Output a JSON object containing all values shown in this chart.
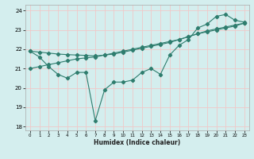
{
  "xlabel": "Humidex (Indice chaleur)",
  "x": [
    0,
    1,
    2,
    3,
    4,
    5,
    6,
    7,
    8,
    9,
    10,
    11,
    12,
    13,
    14,
    15,
    16,
    17,
    18,
    19,
    20,
    21,
    22,
    23
  ],
  "line1": [
    21.9,
    21.6,
    21.1,
    20.7,
    20.5,
    20.8,
    20.8,
    18.3,
    19.9,
    20.3,
    20.3,
    20.4,
    20.8,
    21.0,
    20.7,
    21.7,
    22.2,
    22.5,
    23.1,
    23.3,
    23.7,
    23.8,
    23.5,
    23.4
  ],
  "line2": [
    21.0,
    21.1,
    21.2,
    21.3,
    21.4,
    21.5,
    21.55,
    21.6,
    21.7,
    21.8,
    21.9,
    22.0,
    22.1,
    22.2,
    22.3,
    22.4,
    22.5,
    22.65,
    22.8,
    22.9,
    23.0,
    23.1,
    23.2,
    23.35
  ],
  "line3": [
    21.9,
    21.85,
    21.8,
    21.75,
    21.72,
    21.7,
    21.68,
    21.65,
    21.7,
    21.75,
    21.85,
    21.95,
    22.05,
    22.15,
    22.25,
    22.35,
    22.5,
    22.65,
    22.8,
    22.95,
    23.05,
    23.15,
    23.25,
    23.35
  ],
  "line_color": "#2e7d6e",
  "bg_color": "#d4eeee",
  "grid_color": "#f0c8c8",
  "ylim": [
    17.8,
    24.3
  ],
  "xlim": [
    -0.5,
    23.5
  ],
  "yticks": [
    18,
    19,
    20,
    21,
    22,
    23,
    24
  ],
  "xticks": [
    0,
    1,
    2,
    3,
    4,
    5,
    6,
    7,
    8,
    9,
    10,
    11,
    12,
    13,
    14,
    15,
    16,
    17,
    18,
    19,
    20,
    21,
    22,
    23
  ]
}
